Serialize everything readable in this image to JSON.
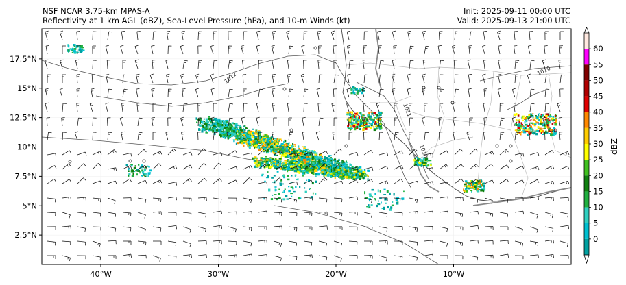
{
  "header": {
    "model": "NSF NCAR 3.75-km MPAS-A",
    "fields": "Reflectivity at 1 km AGL (dBZ), Sea-Level Pressure (hPa), and 10-m Winds (kt)",
    "init": "Init: 2025-09-11 00:00 UTC",
    "valid": "Valid: 2025-09-13 21:00 UTC"
  },
  "map": {
    "lat_labels": [
      "17.5°N",
      "15°N",
      "12.5°N",
      "10°N",
      "7.5°N",
      "5°N",
      "2.5°N"
    ],
    "lat_values": [
      17.5,
      15,
      12.5,
      10,
      7.5,
      5,
      2.5
    ],
    "lon_labels": [
      "40°W",
      "30°W",
      "20°W",
      "10°W"
    ],
    "lon_values": [
      -40,
      -30,
      -20,
      -10
    ],
    "isobar_labels": [
      "1012",
      "1011",
      "1010",
      "1010"
    ]
  },
  "colorbar": {
    "label": "dBZ",
    "ticks": [
      "0",
      "5",
      "10",
      "15",
      "20",
      "25",
      "30",
      "35",
      "40",
      "45",
      "50",
      "55",
      "60"
    ],
    "colors": [
      "#00a0a0",
      "#00c0d0",
      "#30d0c0",
      "#20b040",
      "#108010",
      "#40c020",
      "#ffff00",
      "#ffcc00",
      "#ff8800",
      "#e00000",
      "#b00000",
      "#800000",
      "#ff00ff",
      "#ffe8e0"
    ]
  }
}
